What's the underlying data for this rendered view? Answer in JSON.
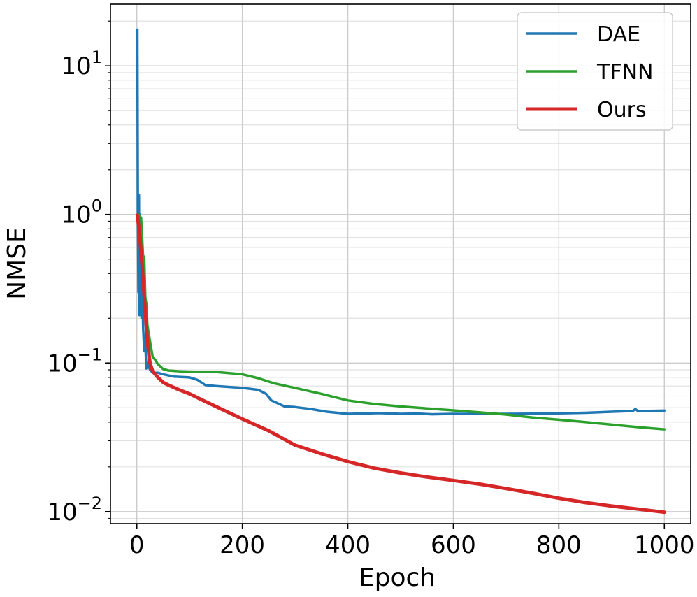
{
  "chart_data": {
    "type": "line",
    "title": "",
    "xlabel": "Epoch",
    "ylabel": "NMSE",
    "xlim": [
      -50,
      1050
    ],
    "ylim": [
      0.0083,
      26
    ],
    "yscale": "log",
    "grid": true,
    "legend_position": "top-right",
    "x_ticks": [
      0,
      200,
      400,
      600,
      800,
      1000
    ],
    "x_tick_labels": [
      "0",
      "200",
      "400",
      "600",
      "800",
      "1000"
    ],
    "y_ticks": [
      0.01,
      0.1,
      1,
      10
    ],
    "y_tick_labels": [
      {
        "base": "10",
        "exp": "−2"
      },
      {
        "base": "10",
        "exp": "−1"
      },
      {
        "base": "10",
        "exp": "0"
      },
      {
        "base": "10",
        "exp": "1"
      }
    ],
    "series": [
      {
        "name": "DAE",
        "color": "#1f77b4",
        "x": [
          1,
          2,
          3,
          4,
          5,
          6,
          7,
          8,
          9,
          10,
          12,
          14,
          16,
          18,
          20,
          25,
          30,
          40,
          50,
          70,
          100,
          115,
          130,
          150,
          200,
          230,
          245,
          255,
          280,
          300,
          330,
          360,
          400,
          430,
          460,
          500,
          530,
          560,
          600,
          650,
          700,
          750,
          800,
          850,
          900,
          940,
          945,
          950,
          1000
        ],
        "y": [
          17.5,
          1.0,
          0.3,
          1.35,
          0.21,
          1.0,
          0.25,
          0.5,
          0.2,
          0.35,
          0.17,
          0.12,
          0.14,
          0.092,
          0.1,
          0.09,
          0.086,
          0.086,
          0.084,
          0.081,
          0.08,
          0.077,
          0.071,
          0.07,
          0.068,
          0.066,
          0.062,
          0.056,
          0.051,
          0.0505,
          0.049,
          0.047,
          0.0455,
          0.0457,
          0.046,
          0.0455,
          0.0457,
          0.0452,
          0.0455,
          0.0455,
          0.0455,
          0.0456,
          0.0458,
          0.0462,
          0.047,
          0.0475,
          0.049,
          0.0475,
          0.0478
        ]
      },
      {
        "name": "TFNN",
        "color": "#2ca02c",
        "x": [
          3,
          8,
          10,
          12,
          14,
          16,
          18,
          20,
          25,
          30,
          35,
          40,
          50,
          60,
          80,
          100,
          150,
          200,
          230,
          260,
          300,
          350,
          400,
          450,
          500,
          550,
          600,
          650,
          700,
          750,
          800,
          850,
          900,
          950,
          1000
        ],
        "y": [
          1.0,
          0.95,
          0.7,
          0.5,
          0.52,
          0.28,
          0.25,
          0.18,
          0.14,
          0.11,
          0.105,
          0.098,
          0.091,
          0.089,
          0.088,
          0.0875,
          0.087,
          0.084,
          0.079,
          0.073,
          0.068,
          0.062,
          0.056,
          0.053,
          0.051,
          0.0495,
          0.048,
          0.0465,
          0.045,
          0.043,
          0.0415,
          0.04,
          0.0385,
          0.037,
          0.0358
        ]
      },
      {
        "name": "Ours",
        "color": "#d62728",
        "x": [
          1,
          5,
          10,
          15,
          20,
          25,
          30,
          40,
          50,
          60,
          80,
          100,
          130,
          160,
          200,
          250,
          300,
          350,
          400,
          450,
          500,
          550,
          600,
          650,
          700,
          750,
          800,
          850,
          900,
          950,
          1000
        ],
        "y": [
          0.99,
          0.75,
          0.45,
          0.25,
          0.14,
          0.1,
          0.088,
          0.08,
          0.074,
          0.071,
          0.066,
          0.062,
          0.055,
          0.049,
          0.042,
          0.035,
          0.028,
          0.0245,
          0.0217,
          0.0196,
          0.0182,
          0.0171,
          0.0162,
          0.0153,
          0.0143,
          0.0133,
          0.0123,
          0.0115,
          0.0109,
          0.0104,
          0.0099
        ]
      }
    ]
  }
}
